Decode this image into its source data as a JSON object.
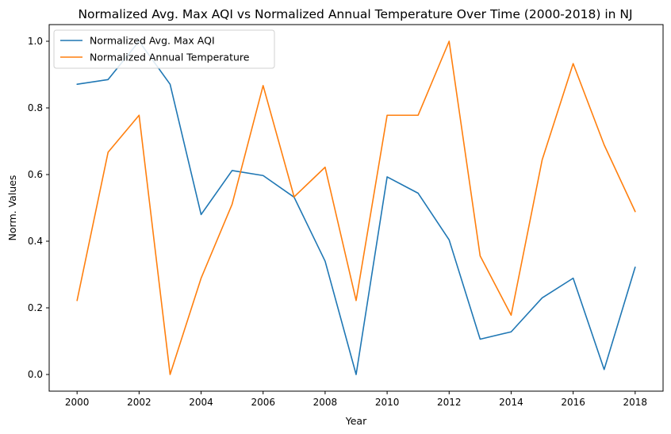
{
  "chart_data": {
    "type": "line",
    "title": "Normalized Avg. Max AQI vs Normalized Annual Temperature Over Time (2000-2018) in NJ",
    "xlabel": "Year",
    "ylabel": "Norm. Values",
    "x": [
      2000,
      2001,
      2002,
      2003,
      2004,
      2005,
      2006,
      2007,
      2008,
      2009,
      2010,
      2011,
      2012,
      2013,
      2014,
      2015,
      2016,
      2017,
      2018
    ],
    "xlim": [
      1999.1,
      2018.9
    ],
    "ylim": [
      -0.05,
      1.05
    ],
    "x_ticks": [
      {
        "value": 2000,
        "label": "2000"
      },
      {
        "value": 2002,
        "label": "2002"
      },
      {
        "value": 2004,
        "label": "2004"
      },
      {
        "value": 2006,
        "label": "2006"
      },
      {
        "value": 2008,
        "label": "2008"
      },
      {
        "value": 2010,
        "label": "2010"
      },
      {
        "value": 2012,
        "label": "2012"
      },
      {
        "value": 2014,
        "label": "2014"
      },
      {
        "value": 2016,
        "label": "2016"
      },
      {
        "value": 2018,
        "label": "2018"
      }
    ],
    "y_ticks": [
      {
        "value": 0.0,
        "label": "0.0"
      },
      {
        "value": 0.2,
        "label": "0.2"
      },
      {
        "value": 0.4,
        "label": "0.4"
      },
      {
        "value": 0.6,
        "label": "0.6"
      },
      {
        "value": 0.8,
        "label": "0.8"
      },
      {
        "value": 1.0,
        "label": "1.0"
      }
    ],
    "grid": false,
    "legend_position": "top-left",
    "series": [
      {
        "name": "Normalized Avg. Max AQI",
        "color": "#1f77b4",
        "values": [
          0.871,
          0.885,
          1.0,
          0.871,
          0.48,
          0.612,
          0.597,
          0.532,
          0.34,
          0.0,
          0.593,
          0.544,
          0.404,
          0.106,
          0.128,
          0.23,
          0.289,
          0.015,
          0.322
        ]
      },
      {
        "name": "Normalized Annual Temperature",
        "color": "#ff7f0e",
        "values": [
          0.222,
          0.667,
          0.778,
          0.0,
          0.289,
          0.511,
          0.867,
          0.533,
          0.622,
          0.222,
          0.778,
          0.778,
          1.0,
          0.356,
          0.178,
          0.644,
          0.933,
          0.689,
          0.489
        ]
      }
    ]
  }
}
